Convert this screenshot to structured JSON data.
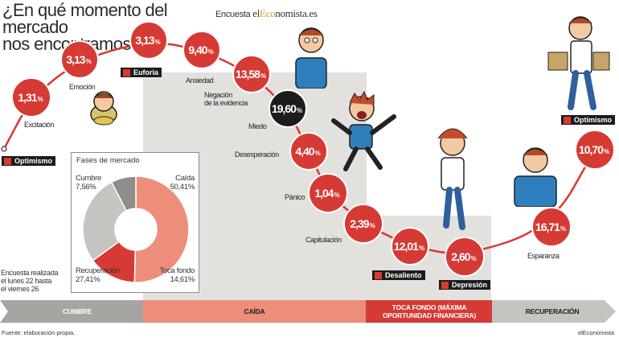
{
  "title_line1": "¿En qué momento del mercado",
  "title_line2": "nos encontramos?",
  "survey_prefix": "Encuesta ",
  "survey_brand_el": "el",
  "survey_brand_eco": "Eco",
  "survey_brand_rest": "nomista.es",
  "survey_note": [
    "Encuesta realizada",
    "el lunes 22 hasta",
    "el viernes 26"
  ],
  "source": "Fuente: elaboración propia.",
  "credit": "elEconomista",
  "colors": {
    "red": "#d63a34",
    "dark": "#1c1c1c",
    "cumbre_band": "#a7a5a2",
    "caida_band": "#ec8e7a",
    "toca_band": "#d63a34",
    "recup_band": "#c6c4c1",
    "panel_gray": "#e3e1de"
  },
  "phases": [
    {
      "name": "CUMBRE"
    },
    {
      "name": "CAÍDA"
    },
    {
      "name": "TOCA FONDO (MÁXIMA OPORTUNIDAD FINANCIERA)"
    },
    {
      "name": "RECUPERACIÓN"
    }
  ],
  "chart_data": [
    {
      "type": "line",
      "x": [
        "Optimismo",
        "Excitación",
        "Emoción",
        "Euforia",
        "Ansiedad",
        "Negación de la evidencia",
        "Miedo",
        "Desesperación",
        "Pánico",
        "Capitulación",
        "Desaliento",
        "Depresión",
        "Esparanza",
        "Optimismo"
      ],
      "y": [
        null,
        1.31,
        3.13,
        3.13,
        9.4,
        13.58,
        19.6,
        4.4,
        1.04,
        2.39,
        12.01,
        2.6,
        16.71,
        10.7
      ],
      "labels": [
        "",
        "1,31",
        "3,13",
        "3,13",
        "9,40",
        "13,58",
        "19,60",
        "4,40",
        "1,04",
        "2,39",
        "12,01",
        "2,60",
        "16,71",
        "10,70"
      ],
      "unit": "%"
    },
    {
      "type": "pie",
      "title": "Fases de mercado",
      "labels": [
        "Caída",
        "Toca fondo",
        "Recuperación",
        "Cumbre"
      ],
      "values": [
        50.41,
        14.61,
        27.41,
        7.56
      ],
      "value_labels": [
        "50,41",
        "14,61",
        "27,41",
        "7,56"
      ],
      "unit": "%",
      "colors": [
        "#ec8e7a",
        "#d63a34",
        "#c6c4c1",
        "#8f8c89"
      ]
    }
  ]
}
